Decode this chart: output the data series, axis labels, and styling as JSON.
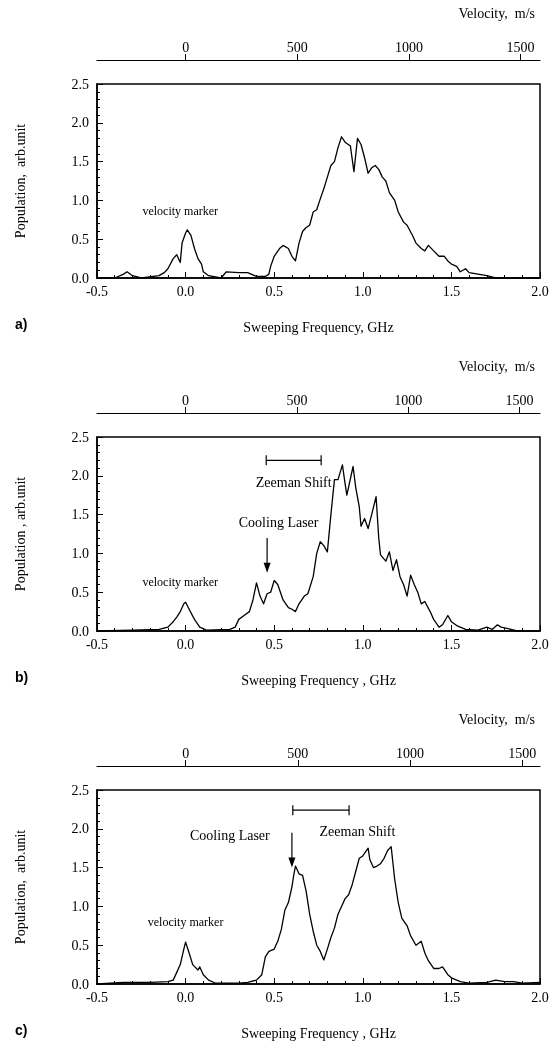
{
  "chart_data": [
    {
      "type": "line",
      "title": "a)",
      "xlabel": "Sweeping Frequency, GHz",
      "ylabel": "Population,  arb.unit",
      "x2label": "Velocity,  m/s",
      "marker": "none",
      "xlim": [
        -0.5,
        2.0
      ],
      "xticks": [
        {
          "value": -0.5,
          "label": "-0.5"
        },
        {
          "value": 0,
          "label": "0.0"
        },
        {
          "value": 0.5,
          "label": "0.5"
        },
        {
          "value": 1,
          "label": "1.0"
        },
        {
          "value": 1.5,
          "label": "1.5"
        },
        {
          "value": 2,
          "label": "2.0"
        }
      ],
      "ylim": [
        0,
        2.5
      ],
      "yticks": [
        {
          "value": 0,
          "label": "0.0"
        },
        {
          "value": 0.5,
          "label": "0.5"
        },
        {
          "value": 1,
          "label": "1.0"
        },
        {
          "value": 1.5,
          "label": "1.5"
        },
        {
          "value": 2,
          "label": "2.0"
        },
        {
          "value": 2.5,
          "label": "2.5"
        }
      ],
      "x2lim": [
        -397,
        1587
      ],
      "x2ticks": [
        0,
        500,
        1000,
        1500
      ],
      "annotations": [
        "velocity marker"
      ],
      "series": [
        {
          "color": "#000000",
          "x": [
            -0.5,
            -0.4,
            -0.35,
            -0.33,
            -0.3,
            -0.25,
            -0.15,
            -0.12,
            -0.1,
            -0.07,
            -0.05,
            -0.03,
            -0.02,
            0.0,
            0.01,
            0.03,
            0.05,
            0.07,
            0.09,
            0.1,
            0.13,
            0.2,
            0.23,
            0.3,
            0.35,
            0.4,
            0.45,
            0.47,
            0.48,
            0.5,
            0.53,
            0.55,
            0.58,
            0.6,
            0.62,
            0.64,
            0.66,
            0.68,
            0.7,
            0.72,
            0.74,
            0.76,
            0.78,
            0.8,
            0.82,
            0.84,
            0.86,
            0.88,
            0.9,
            0.93,
            0.95,
            0.97,
            0.99,
            1.01,
            1.03,
            1.05,
            1.07,
            1.09,
            1.11,
            1.13,
            1.15,
            1.18,
            1.2,
            1.23,
            1.25,
            1.28,
            1.3,
            1.33,
            1.35,
            1.37,
            1.4,
            1.43,
            1.46,
            1.48,
            1.5,
            1.53,
            1.55,
            1.58,
            1.6,
            1.65,
            1.7,
            1.75,
            1.8,
            2.0
          ],
          "values": [
            0.0,
            0.0,
            0.05,
            0.08,
            0.03,
            0.0,
            0.03,
            0.07,
            0.12,
            0.25,
            0.3,
            0.2,
            0.45,
            0.58,
            0.62,
            0.55,
            0.38,
            0.25,
            0.18,
            0.08,
            0.03,
            0.0,
            0.08,
            0.07,
            0.07,
            0.02,
            0.02,
            0.05,
            0.15,
            0.28,
            0.38,
            0.42,
            0.38,
            0.28,
            0.22,
            0.45,
            0.6,
            0.65,
            0.68,
            0.85,
            0.88,
            1.02,
            1.15,
            1.3,
            1.45,
            1.5,
            1.68,
            1.82,
            1.75,
            1.7,
            1.37,
            1.8,
            1.72,
            1.55,
            1.35,
            1.42,
            1.45,
            1.4,
            1.3,
            1.25,
            1.1,
            1.0,
            0.85,
            0.72,
            0.68,
            0.55,
            0.45,
            0.38,
            0.35,
            0.42,
            0.35,
            0.28,
            0.28,
            0.22,
            0.18,
            0.15,
            0.08,
            0.12,
            0.07,
            0.05,
            0.03,
            0.0,
            0.0,
            0.0
          ]
        }
      ]
    },
    {
      "type": "line",
      "title": "b)",
      "xlabel": "Sweeping Frequency , GHz",
      "ylabel": "Population , arb.unit",
      "x2label": "Velocity,  m/s",
      "marker": "none",
      "xlim": [
        -0.5,
        2.0
      ],
      "xticks": [
        {
          "value": -0.5,
          "label": "-0.5"
        },
        {
          "value": 0,
          "label": "0.0"
        },
        {
          "value": 0.5,
          "label": "0.5"
        },
        {
          "value": 1,
          "label": "1.0"
        },
        {
          "value": 1.5,
          "label": "1.5"
        },
        {
          "value": 2,
          "label": "2.0"
        }
      ],
      "ylim": [
        0,
        2.5
      ],
      "yticks": [
        {
          "value": 0,
          "label": "0.0"
        },
        {
          "value": 0.5,
          "label": "0.5"
        },
        {
          "value": 1,
          "label": "1.0"
        },
        {
          "value": 1.5,
          "label": "1.5"
        },
        {
          "value": 2,
          "label": "2.0"
        },
        {
          "value": 2.5,
          "label": "2.5"
        }
      ],
      "x2lim": [
        -398,
        1592
      ],
      "x2ticks": [
        0,
        500,
        1000,
        1500
      ],
      "annotations": [
        "velocity marker",
        "Cooling Laser",
        "Zeeman Shift"
      ],
      "series": [
        {
          "color": "#000000",
          "x": [
            -0.5,
            -0.3,
            -0.15,
            -0.1,
            -0.07,
            -0.05,
            -0.03,
            -0.01,
            0.0,
            0.02,
            0.05,
            0.08,
            0.12,
            0.25,
            0.28,
            0.3,
            0.33,
            0.36,
            0.38,
            0.4,
            0.42,
            0.44,
            0.46,
            0.48,
            0.5,
            0.52,
            0.55,
            0.58,
            0.6,
            0.62,
            0.64,
            0.67,
            0.69,
            0.72,
            0.74,
            0.76,
            0.78,
            0.8,
            0.82,
            0.84,
            0.86,
            0.885,
            0.9,
            0.91,
            0.945,
            0.96,
            0.98,
            0.99,
            1.01,
            1.03,
            1.05,
            1.075,
            1.09,
            1.1,
            1.13,
            1.15,
            1.17,
            1.19,
            1.21,
            1.23,
            1.25,
            1.27,
            1.29,
            1.31,
            1.33,
            1.35,
            1.38,
            1.4,
            1.43,
            1.45,
            1.48,
            1.5,
            1.53,
            1.58,
            1.65,
            1.7,
            1.73,
            1.76,
            1.78,
            1.82,
            1.87,
            2.0
          ],
          "values": [
            0.0,
            0.01,
            0.02,
            0.05,
            0.12,
            0.18,
            0.25,
            0.35,
            0.37,
            0.28,
            0.15,
            0.05,
            0.01,
            0.02,
            0.05,
            0.15,
            0.2,
            0.25,
            0.4,
            0.62,
            0.45,
            0.35,
            0.48,
            0.5,
            0.65,
            0.6,
            0.4,
            0.3,
            0.28,
            0.25,
            0.35,
            0.45,
            0.48,
            0.7,
            1.0,
            1.15,
            1.1,
            1.02,
            1.5,
            1.95,
            1.95,
            2.14,
            1.9,
            1.75,
            2.12,
            1.85,
            1.6,
            1.35,
            1.45,
            1.32,
            1.5,
            1.73,
            1.2,
            0.98,
            0.9,
            1.02,
            0.78,
            0.92,
            0.7,
            0.6,
            0.45,
            0.72,
            0.6,
            0.5,
            0.35,
            0.38,
            0.25,
            0.15,
            0.05,
            0.08,
            0.2,
            0.12,
            0.07,
            0.02,
            0.01,
            0.05,
            0.02,
            0.08,
            0.05,
            0.03,
            0.0,
            0.0
          ]
        }
      ]
    },
    {
      "type": "line",
      "title": "c)",
      "xlabel": "Sweeping Frequency , GHz",
      "ylabel": "Population,  arb.unit",
      "x2label": "Velocity,  m/s",
      "marker": "none",
      "xlim": [
        -0.5,
        2.0
      ],
      "xticks": [
        {
          "value": -0.5,
          "label": "-0.5"
        },
        {
          "value": 0,
          "label": "0.0"
        },
        {
          "value": 0.5,
          "label": "0.5"
        },
        {
          "value": 1,
          "label": "1.0"
        },
        {
          "value": 1.5,
          "label": "1.5"
        },
        {
          "value": 2,
          "label": "2.0"
        }
      ],
      "ylim": [
        0,
        2.5
      ],
      "yticks": [
        {
          "value": 0,
          "label": "0.0"
        },
        {
          "value": 0.5,
          "label": "0.5"
        },
        {
          "value": 1,
          "label": "1.0"
        },
        {
          "value": 1.5,
          "label": "1.5"
        },
        {
          "value": 2,
          "label": "2.0"
        },
        {
          "value": 2.5,
          "label": "2.5"
        }
      ],
      "x2lim": [
        -395,
        1579
      ],
      "x2ticks": [
        0,
        500,
        1000,
        1500
      ],
      "annotations": [
        "velocity marker",
        "Cooling Laser",
        "Zeeman Shift"
      ],
      "series": [
        {
          "color": "#000000",
          "x": [
            -0.5,
            -0.35,
            -0.2,
            -0.1,
            -0.07,
            -0.05,
            -0.03,
            -0.01,
            0.0,
            0.02,
            0.04,
            0.07,
            0.08,
            0.1,
            0.13,
            0.17,
            0.3,
            0.35,
            0.4,
            0.43,
            0.45,
            0.47,
            0.5,
            0.52,
            0.54,
            0.56,
            0.58,
            0.6,
            0.61,
            0.62,
            0.64,
            0.66,
            0.68,
            0.7,
            0.72,
            0.74,
            0.76,
            0.78,
            0.8,
            0.82,
            0.84,
            0.86,
            0.88,
            0.9,
            0.92,
            0.94,
            0.96,
            0.98,
            1.0,
            1.03,
            1.04,
            1.06,
            1.08,
            1.1,
            1.12,
            1.14,
            1.16,
            1.18,
            1.2,
            1.22,
            1.25,
            1.27,
            1.3,
            1.33,
            1.35,
            1.37,
            1.4,
            1.43,
            1.45,
            1.48,
            1.5,
            1.55,
            1.6,
            1.7,
            1.75,
            1.8,
            1.85,
            1.9,
            2.0
          ],
          "values": [
            0.0,
            0.02,
            0.02,
            0.03,
            0.05,
            0.15,
            0.25,
            0.45,
            0.54,
            0.4,
            0.25,
            0.18,
            0.22,
            0.12,
            0.05,
            0.01,
            0.01,
            0.02,
            0.05,
            0.12,
            0.35,
            0.42,
            0.45,
            0.55,
            0.7,
            0.95,
            1.05,
            1.25,
            1.4,
            1.52,
            1.42,
            1.4,
            1.2,
            0.9,
            0.68,
            0.5,
            0.42,
            0.31,
            0.45,
            0.6,
            0.72,
            0.9,
            1.0,
            1.1,
            1.15,
            1.28,
            1.45,
            1.62,
            1.65,
            1.75,
            1.6,
            1.5,
            1.52,
            1.55,
            1.62,
            1.72,
            1.77,
            1.35,
            1.05,
            0.85,
            0.75,
            0.62,
            0.5,
            0.55,
            0.4,
            0.3,
            0.2,
            0.2,
            0.22,
            0.12,
            0.08,
            0.03,
            0.01,
            0.02,
            0.05,
            0.03,
            0.03,
            0.01,
            0.02
          ]
        }
      ]
    }
  ]
}
